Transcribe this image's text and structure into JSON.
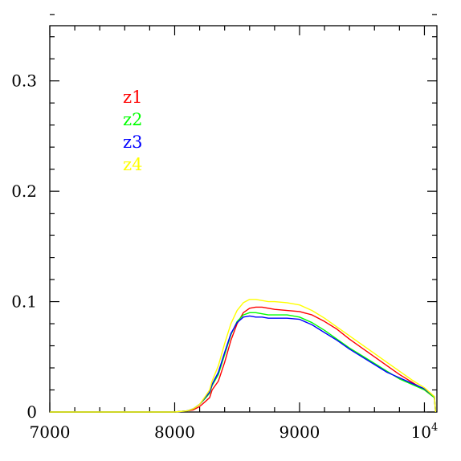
{
  "chart_data": {
    "type": "line",
    "title": "",
    "xlabel": "",
    "ylabel": "",
    "xlim": [
      7000,
      10100
    ],
    "ylim": [
      0,
      0.35
    ],
    "grid": false,
    "legend_position": "top-left",
    "x_ticks": [
      {
        "value": 7000,
        "label": "7000"
      },
      {
        "value": 8000,
        "label": "8000"
      },
      {
        "value": 9000,
        "label": "9000"
      },
      {
        "value": 10000,
        "label": "10",
        "sup": "4"
      }
    ],
    "y_ticks": [
      {
        "value": 0,
        "label": "0"
      },
      {
        "value": 0.1,
        "label": "0.1"
      },
      {
        "value": 0.2,
        "label": "0.2"
      },
      {
        "value": 0.3,
        "label": "0.3"
      }
    ],
    "series": [
      {
        "name": "z1",
        "color": "#ff0000",
        "x": [
          7000,
          7500,
          8000,
          8100,
          8150,
          8200,
          8250,
          8280,
          8300,
          8350,
          8400,
          8450,
          8500,
          8550,
          8600,
          8650,
          8700,
          8750,
          8800,
          8900,
          9000,
          9100,
          9200,
          9300,
          9400,
          9500,
          9600,
          9700,
          9800,
          9900,
          10000,
          10080,
          10090
        ],
        "y": [
          0,
          0,
          0,
          0.001,
          0.002,
          0.005,
          0.01,
          0.013,
          0.02,
          0.028,
          0.045,
          0.065,
          0.08,
          0.09,
          0.094,
          0.095,
          0.095,
          0.094,
          0.093,
          0.092,
          0.091,
          0.088,
          0.082,
          0.075,
          0.066,
          0.058,
          0.05,
          0.042,
          0.034,
          0.027,
          0.02,
          0.013,
          0.0
        ]
      },
      {
        "name": "z2",
        "color": "#00ff00",
        "x": [
          7000,
          7500,
          8000,
          8100,
          8150,
          8200,
          8250,
          8280,
          8300,
          8350,
          8400,
          8450,
          8500,
          8550,
          8600,
          8650,
          8700,
          8750,
          8800,
          8900,
          9000,
          9100,
          9200,
          9300,
          9400,
          9500,
          9600,
          9700,
          9800,
          9900,
          10000,
          10080,
          10090
        ],
        "y": [
          0,
          0,
          0,
          0.001,
          0.003,
          0.007,
          0.013,
          0.017,
          0.024,
          0.034,
          0.052,
          0.07,
          0.082,
          0.088,
          0.09,
          0.09,
          0.089,
          0.088,
          0.088,
          0.088,
          0.086,
          0.081,
          0.074,
          0.066,
          0.058,
          0.051,
          0.044,
          0.037,
          0.03,
          0.025,
          0.02,
          0.013,
          0.0
        ]
      },
      {
        "name": "z3",
        "color": "#0000ff",
        "x": [
          7000,
          7500,
          8000,
          8100,
          8150,
          8200,
          8250,
          8280,
          8300,
          8350,
          8400,
          8450,
          8500,
          8550,
          8600,
          8650,
          8700,
          8750,
          8800,
          8900,
          9000,
          9100,
          9200,
          9300,
          9400,
          9500,
          9600,
          9700,
          9800,
          9900,
          10000,
          10080,
          10090
        ],
        "y": [
          0,
          0,
          0,
          0.001,
          0.003,
          0.007,
          0.014,
          0.018,
          0.025,
          0.036,
          0.054,
          0.071,
          0.081,
          0.086,
          0.087,
          0.086,
          0.086,
          0.085,
          0.085,
          0.085,
          0.084,
          0.079,
          0.072,
          0.065,
          0.057,
          0.05,
          0.043,
          0.036,
          0.031,
          0.026,
          0.021,
          0.014,
          0.0
        ]
      },
      {
        "name": "z4",
        "color": "#ffff00",
        "x": [
          7000,
          7500,
          8000,
          8100,
          8150,
          8200,
          8250,
          8280,
          8300,
          8350,
          8400,
          8450,
          8500,
          8550,
          8600,
          8650,
          8700,
          8750,
          8800,
          8900,
          9000,
          9100,
          9200,
          9300,
          9400,
          9500,
          9600,
          9700,
          9800,
          9900,
          10000,
          10080,
          10090
        ],
        "y": [
          0,
          0,
          0,
          0.001,
          0.003,
          0.007,
          0.015,
          0.02,
          0.028,
          0.042,
          0.062,
          0.08,
          0.092,
          0.099,
          0.102,
          0.102,
          0.101,
          0.1,
          0.1,
          0.099,
          0.097,
          0.092,
          0.085,
          0.077,
          0.069,
          0.061,
          0.053,
          0.045,
          0.037,
          0.029,
          0.022,
          0.014,
          0.0
        ]
      }
    ]
  }
}
